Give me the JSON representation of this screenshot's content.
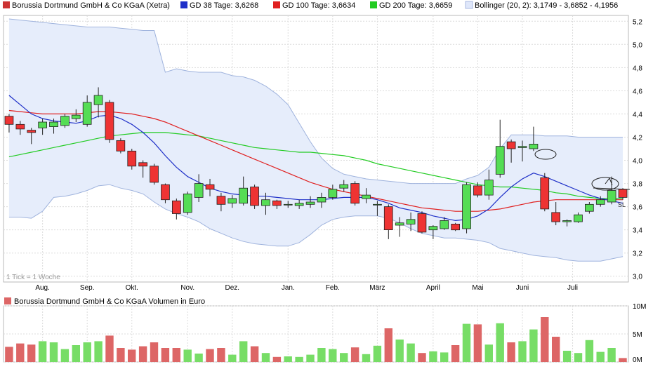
{
  "legend": [
    {
      "label": "Borussia Dortmund GmbH & Co KGaA (Xetra)",
      "color": "#cc3333",
      "kind": "fill"
    },
    {
      "label": "GD 38 Tage: 3,6268",
      "color": "#1e2fc8",
      "kind": "fill"
    },
    {
      "label": "GD 100 Tage: 3,6634",
      "color": "#e02020",
      "kind": "fill"
    },
    {
      "label": "GD 200 Tage: 3,6659",
      "color": "#22cc22",
      "kind": "fill"
    },
    {
      "label": "Bollinger (20, 2): 3,1749 - 3,6852 - 4,1956",
      "color": "#a8b8e0",
      "kind": "band"
    }
  ],
  "tick_note": "1 Tick = 1 Woche",
  "sl_label": "SL",
  "volume_title": "Borussia Dortmund GmbH & Co KGaA Volumen in Euro",
  "colors": {
    "up": "#55dd55",
    "down": "#ee3333",
    "vol_up": "#77dd66",
    "vol_down": "#dd6666",
    "band_fill": "#e6edfb",
    "band_line": "#9fb3dd",
    "gd38": "#1e2fc8",
    "gd100": "#e02020",
    "gd200": "#22cc22"
  },
  "chart_data": [
    {
      "type": "candlestick",
      "title": "Borussia Dortmund GmbH & Co KGaA (Xetra)",
      "x_labels": [
        "Aug.",
        "Sep.",
        "Okt.",
        "Nov.",
        "Dez.",
        "Jan.",
        "Feb.",
        "März",
        "April",
        "Mai",
        "Juni",
        "Juli"
      ],
      "x_label_week_index": [
        3.5,
        7.5,
        11.5,
        16.5,
        20.5,
        25.5,
        29.5,
        33.5,
        38.5,
        42.5,
        46.5,
        51
      ],
      "y_ticks": [
        "3,0",
        "3,2",
        "3,4",
        "3,6",
        "3,8",
        "4,0",
        "4,2",
        "4,4",
        "4,6",
        "4,8",
        "5,0",
        "5,2"
      ],
      "ylim": [
        2.95,
        5.25
      ],
      "grid": true,
      "candles": [
        [
          4.38,
          4.31,
          4.4,
          4.24
        ],
        [
          4.31,
          4.27,
          4.34,
          4.22
        ],
        [
          4.26,
          4.24,
          4.28,
          4.14
        ],
        [
          4.28,
          4.33,
          4.36,
          4.22
        ],
        [
          4.29,
          4.33,
          4.36,
          4.23
        ],
        [
          4.3,
          4.38,
          4.4,
          4.28
        ],
        [
          4.36,
          4.39,
          4.44,
          4.33
        ],
        [
          4.31,
          4.5,
          4.56,
          4.29
        ],
        [
          4.48,
          4.56,
          4.63,
          4.37
        ],
        [
          4.5,
          4.18,
          4.52,
          4.15
        ],
        [
          4.17,
          4.08,
          4.19,
          4.06
        ],
        [
          4.08,
          3.95,
          4.1,
          3.92
        ],
        [
          3.98,
          3.95,
          4.0,
          3.85
        ],
        [
          3.95,
          3.81,
          3.97,
          3.79
        ],
        [
          3.79,
          3.66,
          3.8,
          3.63
        ],
        [
          3.65,
          3.54,
          3.67,
          3.49
        ],
        [
          3.55,
          3.71,
          3.73,
          3.53
        ],
        [
          3.68,
          3.8,
          3.88,
          3.64
        ],
        [
          3.79,
          3.75,
          3.84,
          3.69
        ],
        [
          3.69,
          3.62,
          3.72,
          3.56
        ],
        [
          3.63,
          3.67,
          3.7,
          3.59
        ],
        [
          3.63,
          3.76,
          3.86,
          3.61
        ],
        [
          3.77,
          3.61,
          3.79,
          3.58
        ],
        [
          3.61,
          3.66,
          3.72,
          3.53
        ],
        [
          3.65,
          3.61,
          3.66,
          3.58
        ],
        [
          3.62,
          3.62,
          3.65,
          3.59
        ],
        [
          3.61,
          3.63,
          3.66,
          3.58
        ],
        [
          3.62,
          3.64,
          3.69,
          3.59
        ],
        [
          3.64,
          3.68,
          3.72,
          3.59
        ],
        [
          3.68,
          3.75,
          3.79,
          3.66
        ],
        [
          3.76,
          3.79,
          3.83,
          3.73
        ],
        [
          3.8,
          3.63,
          3.82,
          3.61
        ],
        [
          3.67,
          3.7,
          3.76,
          3.63
        ],
        [
          3.62,
          3.62,
          3.65,
          3.52
        ],
        [
          3.6,
          3.4,
          3.62,
          3.32
        ],
        [
          3.44,
          3.46,
          3.51,
          3.34
        ],
        [
          3.45,
          3.49,
          3.55,
          3.39
        ],
        [
          3.54,
          3.38,
          3.56,
          3.37
        ],
        [
          3.4,
          3.43,
          3.44,
          3.32
        ],
        [
          3.41,
          3.48,
          3.51,
          3.4
        ],
        [
          3.45,
          3.4,
          3.46,
          3.39
        ],
        [
          3.41,
          3.79,
          3.81,
          3.37
        ],
        [
          3.78,
          3.7,
          3.81,
          3.68
        ],
        [
          3.7,
          3.83,
          3.92,
          3.66
        ],
        [
          3.88,
          4.12,
          4.35,
          3.85
        ],
        [
          4.16,
          4.1,
          4.18,
          3.98
        ],
        [
          4.11,
          4.12,
          4.17,
          3.99
        ],
        [
          4.1,
          4.14,
          4.29,
          4.08
        ],
        [
          3.85,
          3.58,
          3.89,
          3.56
        ],
        [
          3.55,
          3.47,
          3.64,
          3.44
        ],
        [
          3.47,
          3.48,
          3.49,
          3.43
        ],
        [
          3.47,
          3.53,
          3.55,
          3.46
        ],
        [
          3.56,
          3.62,
          3.64,
          3.54
        ],
        [
          3.62,
          3.66,
          3.69,
          3.6
        ],
        [
          3.64,
          3.74,
          3.86,
          3.62
        ],
        [
          3.75,
          3.68,
          3.76,
          3.66
        ]
      ],
      "gd38": [
        4.56,
        4.48,
        4.4,
        4.36,
        4.34,
        4.33,
        4.32,
        4.34,
        4.38,
        4.39,
        4.36,
        4.31,
        4.24,
        4.15,
        4.04,
        3.94,
        3.86,
        3.81,
        3.76,
        3.73,
        3.71,
        3.7,
        3.69,
        3.69,
        3.68,
        3.67,
        3.66,
        3.66,
        3.66,
        3.67,
        3.68,
        3.68,
        3.68,
        3.66,
        3.63,
        3.59,
        3.57,
        3.55,
        3.52,
        3.5,
        3.48,
        3.49,
        3.52,
        3.58,
        3.68,
        3.77,
        3.84,
        3.89,
        3.86,
        3.82,
        3.78,
        3.74,
        3.7,
        3.67,
        3.65,
        3.63
      ],
      "gd100": [
        4.43,
        4.42,
        4.41,
        4.4,
        4.4,
        4.4,
        4.4,
        4.41,
        4.42,
        4.42,
        4.41,
        4.4,
        4.38,
        4.36,
        4.33,
        4.29,
        4.25,
        4.21,
        4.17,
        4.13,
        4.09,
        4.05,
        4.01,
        3.97,
        3.93,
        3.89,
        3.85,
        3.81,
        3.78,
        3.75,
        3.73,
        3.71,
        3.69,
        3.67,
        3.65,
        3.63,
        3.61,
        3.59,
        3.58,
        3.57,
        3.56,
        3.56,
        3.56,
        3.57,
        3.58,
        3.6,
        3.62,
        3.64,
        3.65,
        3.66,
        3.66,
        3.66,
        3.66,
        3.66,
        3.66,
        3.66
      ],
      "gd200": [
        4.03,
        4.05,
        4.07,
        4.09,
        4.11,
        4.13,
        4.15,
        4.17,
        4.19,
        4.21,
        4.22,
        4.23,
        4.24,
        4.24,
        4.24,
        4.23,
        4.22,
        4.21,
        4.19,
        4.17,
        4.15,
        4.13,
        4.11,
        4.1,
        4.09,
        4.08,
        4.07,
        4.07,
        4.06,
        4.05,
        4.04,
        4.02,
        4.0,
        3.97,
        3.95,
        3.93,
        3.91,
        3.89,
        3.87,
        3.85,
        3.83,
        3.81,
        3.79,
        3.78,
        3.77,
        3.77,
        3.76,
        3.75,
        3.74,
        3.72,
        3.71,
        3.69,
        3.68,
        3.67,
        3.67,
        3.67
      ],
      "boll_upper": [
        5.22,
        5.21,
        5.2,
        5.19,
        5.18,
        5.17,
        5.16,
        5.15,
        5.15,
        5.15,
        5.14,
        5.13,
        5.12,
        5.12,
        4.76,
        4.79,
        4.77,
        4.76,
        4.76,
        4.76,
        4.73,
        4.72,
        4.69,
        4.64,
        4.57,
        4.48,
        4.32,
        4.16,
        4.02,
        3.93,
        3.88,
        3.86,
        3.84,
        3.83,
        3.82,
        3.81,
        3.8,
        3.8,
        3.8,
        3.8,
        3.8,
        3.84,
        3.87,
        3.94,
        4.1,
        4.22,
        4.22,
        4.22,
        4.21,
        4.21,
        4.21,
        4.2,
        4.2,
        4.2,
        4.2,
        4.2
      ],
      "boll_lower": [
        3.51,
        3.51,
        3.5,
        3.56,
        3.68,
        3.69,
        3.71,
        3.74,
        3.78,
        3.79,
        3.76,
        3.74,
        3.71,
        3.64,
        3.58,
        3.54,
        3.51,
        3.47,
        3.41,
        3.37,
        3.33,
        3.3,
        3.28,
        3.27,
        3.26,
        3.26,
        3.29,
        3.36,
        3.44,
        3.49,
        3.51,
        3.52,
        3.52,
        3.52,
        3.5,
        3.46,
        3.41,
        3.37,
        3.35,
        3.33,
        3.33,
        3.32,
        3.31,
        3.29,
        3.24,
        3.22,
        3.2,
        3.18,
        3.17,
        3.16,
        3.14,
        3.13,
        3.13,
        3.13,
        3.15,
        3.17
      ]
    },
    {
      "type": "bar",
      "title": "Borussia Dortmund GmbH & Co KGaA Volumen in Euro",
      "y_ticks": [
        "0M",
        "5M",
        "10M"
      ],
      "ylim": [
        0,
        10
      ],
      "values_millions": [
        2.7,
        3.3,
        3.1,
        3.7,
        3.5,
        2.3,
        3.0,
        3.5,
        3.7,
        4.7,
        2.5,
        2.2,
        2.8,
        3.5,
        2.5,
        2.5,
        2.2,
        1.5,
        2.3,
        2.5,
        1.3,
        3.7,
        2.8,
        1.6,
        0.9,
        1.0,
        0.9,
        1.3,
        2.5,
        2.3,
        1.6,
        2.6,
        1.4,
        2.9,
        6.0,
        4.0,
        3.3,
        1.6,
        1.9,
        1.7,
        3.0,
        6.8,
        6.7,
        3.1,
        6.9,
        3.5,
        3.7,
        5.8,
        8.0,
        4.5,
        2.0,
        1.6,
        3.9,
        1.8,
        2.5,
        0.7
      ]
    }
  ]
}
